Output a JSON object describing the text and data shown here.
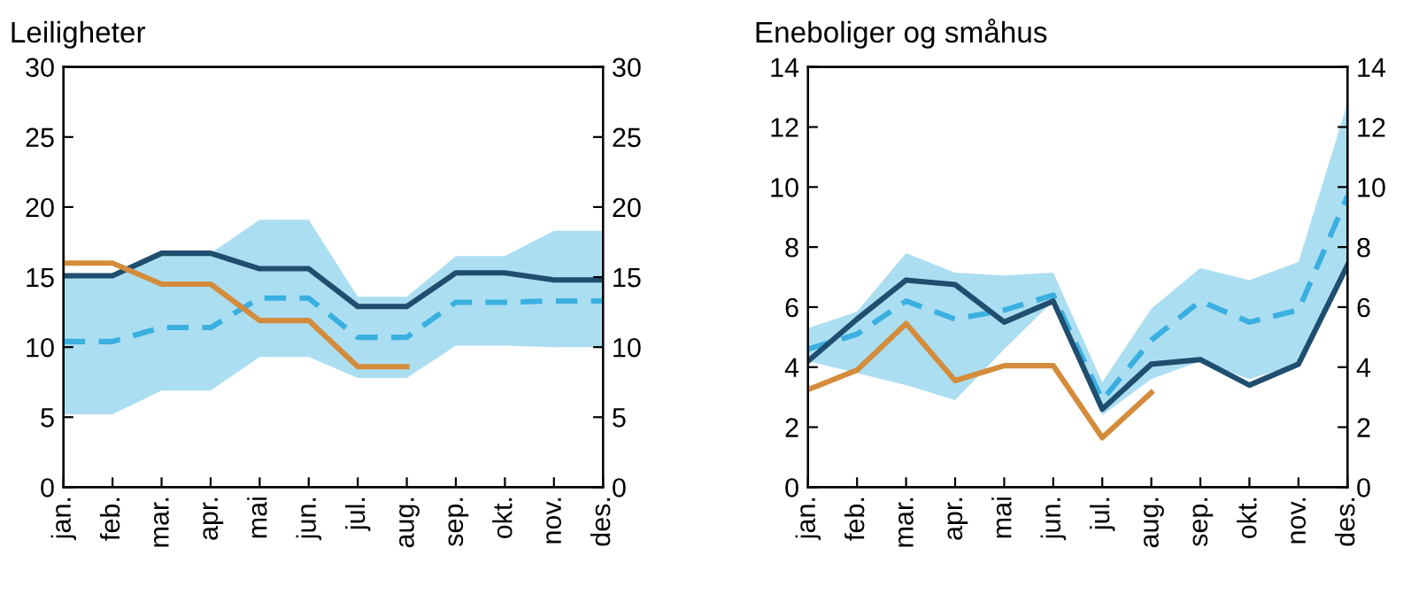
{
  "chart_data": [
    {
      "type": "line",
      "title": "Leiligheter",
      "categories": [
        "jan.",
        "feb.",
        "mar.",
        "apr.",
        "mai",
        "jun.",
        "jul.",
        "aug.",
        "sep.",
        "okt.",
        "nov.",
        "des."
      ],
      "ylim": [
        0,
        30
      ],
      "yticks": [
        0,
        5,
        10,
        15,
        20,
        25,
        30
      ],
      "y2lim": [
        0,
        30
      ],
      "y2ticks": [
        0,
        5,
        10,
        15,
        20,
        25,
        30
      ],
      "grid": false,
      "legend": false,
      "series": [
        {
          "color": "#3ab0e0",
          "line_style": "dashed",
          "values": [
            10.4,
            10.4,
            11.4,
            11.4,
            13.5,
            13.5,
            10.7,
            10.7,
            13.2,
            13.2,
            13.3,
            13.3
          ],
          "lower": [
            5.2,
            5.2,
            6.9,
            6.9,
            9.3,
            9.3,
            7.8,
            7.8,
            10.1,
            10.1,
            10.0,
            10.0
          ],
          "upper": [
            15.0,
            15.0,
            16.7,
            16.7,
            19.1,
            19.1,
            13.6,
            13.6,
            16.5,
            16.5,
            18.3,
            18.3
          ]
        },
        {
          "color": "#1f4e6e",
          "line_style": "solid",
          "values": [
            15.1,
            15.1,
            16.7,
            16.7,
            15.6,
            15.6,
            12.9,
            12.9,
            15.3,
            15.3,
            14.8,
            14.8
          ]
        },
        {
          "color": "#d48c3c",
          "line_style": "solid",
          "values": [
            16.0,
            16.0,
            14.5,
            14.5,
            11.9,
            11.9,
            8.6,
            8.6,
            null,
            null,
            null,
            null
          ]
        }
      ]
    },
    {
      "type": "line",
      "title": "Eneboliger og småhus",
      "categories": [
        "jan.",
        "feb.",
        "mar.",
        "apr.",
        "mai",
        "jun.",
        "jul.",
        "aug.",
        "sep.",
        "okt.",
        "nov.",
        "des."
      ],
      "ylim": [
        0,
        14
      ],
      "yticks": [
        0,
        2,
        4,
        6,
        8,
        10,
        12,
        14
      ],
      "y2lim": [
        0,
        14
      ],
      "y2ticks": [
        0,
        2,
        4,
        6,
        8,
        10,
        12,
        14
      ],
      "grid": false,
      "legend": false,
      "series": [
        {
          "color": "#3ab0e0",
          "line_style": "dashed",
          "values": [
            4.6,
            5.1,
            6.2,
            5.6,
            5.9,
            6.4,
            2.9,
            4.9,
            6.2,
            5.5,
            5.9,
            9.7
          ],
          "lower": [
            4.2,
            3.8,
            3.4,
            2.9,
            4.6,
            6.2,
            2.4,
            3.6,
            4.2,
            3.6,
            4.1,
            7.4
          ],
          "upper": [
            5.3,
            5.85,
            7.8,
            7.15,
            7.05,
            7.15,
            3.5,
            5.95,
            7.3,
            6.9,
            7.5,
            12.8
          ]
        },
        {
          "color": "#1f4e6e",
          "line_style": "solid",
          "values": [
            4.2,
            5.6,
            6.9,
            6.75,
            5.5,
            6.2,
            2.6,
            4.1,
            4.25,
            3.4,
            4.1,
            7.4
          ]
        },
        {
          "color": "#d48c3c",
          "line_style": "solid",
          "values": [
            3.25,
            3.9,
            5.45,
            3.55,
            4.05,
            4.05,
            1.65,
            3.15,
            null,
            null,
            null,
            null
          ]
        }
      ]
    }
  ]
}
